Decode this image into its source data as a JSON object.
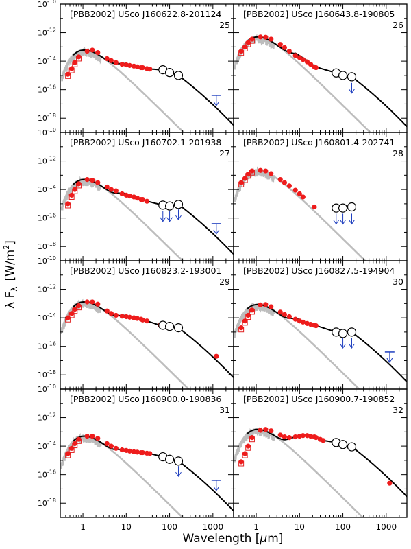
{
  "figure": {
    "ylabel_main": "λ F",
    "ylabel_sub": "λ",
    "ylabel_units_pre": "[W/m",
    "ylabel_units_sup": "2",
    "ylabel_units_post": "]",
    "xlabel_pre": "Wavelength  [",
    "xlabel_mu": "μ",
    "xlabel_post": "m]"
  },
  "chart_data": [
    {
      "type": "scatter",
      "catalog": "[PBB2002]",
      "title": "USco J160622.8-201124",
      "number": "25",
      "xscale": "log",
      "yscale": "log",
      "xlim": [
        0.3,
        3000
      ],
      "ylim": [
        1e-19,
        1e-10
      ],
      "photometry": [
        [
          0.45,
          1.2e-15
        ],
        [
          0.55,
          3e-15
        ],
        [
          0.65,
          8e-15
        ],
        [
          0.8,
          2e-14
        ],
        [
          1.25,
          5e-14
        ],
        [
          1.65,
          6e-14
        ],
        [
          2.2,
          4e-14
        ],
        [
          3.6,
          1.5e-14
        ],
        [
          4.5,
          1.1e-14
        ],
        [
          5.8,
          8e-15
        ],
        [
          8,
          6e-15
        ],
        [
          10,
          5.5e-15
        ],
        [
          12,
          5e-15
        ],
        [
          15,
          4.5e-15
        ],
        [
          18,
          4e-15
        ],
        [
          22,
          3.5e-15
        ],
        [
          24,
          3.5e-15
        ],
        [
          30,
          3e-15
        ],
        [
          35,
          2.8e-15
        ]
      ],
      "herschel": [
        [
          70,
          2.5e-15
        ],
        [
          100,
          1.6e-15
        ],
        [
          160,
          1e-15
        ]
      ],
      "upper_limits": [
        [
          1200,
          4e-17
        ]
      ],
      "model_kind": "disk"
    },
    {
      "type": "scatter",
      "catalog": "[PBB2002]",
      "title": "USco J160643.8-190805",
      "number": "26",
      "xscale": "log",
      "yscale": "log",
      "xlim": [
        0.3,
        3000
      ],
      "ylim": [
        1e-19,
        1e-10
      ],
      "photometry": [
        [
          0.45,
          5e-14
        ],
        [
          0.55,
          1e-13
        ],
        [
          0.65,
          2e-13
        ],
        [
          0.8,
          3.5e-13
        ],
        [
          1.25,
          5e-13
        ],
        [
          1.65,
          4.8e-13
        ],
        [
          2.2,
          3.5e-13
        ],
        [
          3.6,
          1.5e-13
        ],
        [
          4.5,
          9e-14
        ],
        [
          5.8,
          5e-14
        ],
        [
          8,
          2.5e-14
        ],
        [
          10,
          1.8e-14
        ],
        [
          12,
          1.3e-14
        ],
        [
          15,
          9e-15
        ],
        [
          18,
          6e-15
        ],
        [
          22,
          4e-15
        ],
        [
          24,
          3.5e-15
        ]
      ],
      "herschel": [
        [
          70,
          1.5e-15
        ],
        [
          100,
          1e-15
        ],
        [
          160,
          8e-16
        ]
      ],
      "upper_limits": [
        [
          160,
          3e-16
        ]
      ],
      "model_kind": "weak-disk"
    },
    {
      "type": "scatter",
      "catalog": "[PBB2002]",
      "title": "USco J160702.1-201938",
      "number": "27",
      "xscale": "log",
      "yscale": "log",
      "xlim": [
        0.3,
        3000
      ],
      "ylim": [
        1e-19,
        1e-10
      ],
      "photometry": [
        [
          0.45,
          1e-15
        ],
        [
          0.55,
          4e-15
        ],
        [
          0.65,
          1e-14
        ],
        [
          0.8,
          2.5e-14
        ],
        [
          1.25,
          5e-14
        ],
        [
          1.65,
          4.5e-14
        ],
        [
          2.2,
          3e-14
        ],
        [
          3.6,
          1.5e-14
        ],
        [
          4.5,
          1e-14
        ],
        [
          5.8,
          8e-15
        ],
        [
          8,
          5e-15
        ],
        [
          10,
          4e-15
        ],
        [
          12,
          3.5e-15
        ],
        [
          15,
          3e-15
        ],
        [
          18,
          2.5e-15
        ],
        [
          22,
          2e-15
        ],
        [
          24,
          2e-15
        ],
        [
          30,
          1.5e-15
        ]
      ],
      "herschel": [
        [
          70,
          8e-16
        ],
        [
          100,
          7e-16
        ],
        [
          160,
          9e-16
        ]
      ],
      "upper_limits": [
        [
          70,
          3e-16
        ],
        [
          100,
          3e-16
        ],
        [
          160,
          4e-16
        ],
        [
          1200,
          4e-17
        ]
      ],
      "model_kind": "disk"
    },
    {
      "type": "scatter",
      "catalog": "[PBB2002]",
      "title": "USco J160801.4-202741",
      "number": "28",
      "xscale": "log",
      "yscale": "log",
      "xlim": [
        0.3,
        3000
      ],
      "ylim": [
        1e-19,
        1e-10
      ],
      "photometry": [
        [
          0.45,
          3e-14
        ],
        [
          0.55,
          6e-14
        ],
        [
          0.65,
          1.2e-13
        ],
        [
          0.8,
          2e-13
        ],
        [
          1.25,
          2.2e-13
        ],
        [
          1.65,
          2e-13
        ],
        [
          2.2,
          1.3e-13
        ],
        [
          3.6,
          5e-14
        ],
        [
          4.5,
          3e-14
        ],
        [
          5.8,
          1.8e-14
        ],
        [
          8,
          9e-15
        ],
        [
          10,
          5e-15
        ],
        [
          12,
          3e-15
        ],
        [
          22,
          6e-16
        ]
      ],
      "herschel": [
        [
          70,
          5e-16
        ],
        [
          100,
          5e-16
        ],
        [
          160,
          6e-16
        ]
      ],
      "upper_limits": [
        [
          70,
          2e-16
        ],
        [
          100,
          2e-16
        ],
        [
          160,
          2e-16
        ]
      ],
      "model_kind": "none"
    },
    {
      "type": "scatter",
      "catalog": "[PBB2002]",
      "title": "USco J160823.2-193001",
      "number": "29",
      "xscale": "log",
      "yscale": "log",
      "xlim": [
        0.3,
        3000
      ],
      "ylim": [
        1e-19,
        1e-10
      ],
      "photometry": [
        [
          0.45,
          1e-14
        ],
        [
          0.55,
          2e-14
        ],
        [
          0.65,
          4e-14
        ],
        [
          0.8,
          7e-14
        ],
        [
          1.25,
          1.3e-13
        ],
        [
          1.65,
          1.3e-13
        ],
        [
          2.2,
          9e-14
        ],
        [
          3.6,
          3e-14
        ],
        [
          4.5,
          2e-14
        ],
        [
          5.8,
          1.5e-14
        ],
        [
          8,
          1.3e-14
        ],
        [
          10,
          1.2e-14
        ],
        [
          12,
          1.1e-14
        ],
        [
          15,
          1e-14
        ],
        [
          18,
          9e-15
        ],
        [
          22,
          8e-15
        ],
        [
          24,
          7e-15
        ],
        [
          30,
          6e-15
        ],
        [
          60,
          3e-15
        ]
      ],
      "herschel": [
        [
          70,
          3e-15
        ],
        [
          100,
          2.5e-15
        ],
        [
          160,
          2e-15
        ]
      ],
      "upper_limits": [],
      "extra_points": [
        [
          1200,
          2e-17
        ]
      ],
      "model_kind": "disk-strong"
    },
    {
      "type": "scatter",
      "catalog": "[PBB2002]",
      "title": "USco J160827.5-194904",
      "number": "30",
      "xscale": "log",
      "yscale": "log",
      "xlim": [
        0.3,
        3000
      ],
      "ylim": [
        1e-19,
        1e-10
      ],
      "photometry": [
        [
          0.45,
          2e-15
        ],
        [
          0.55,
          6e-15
        ],
        [
          0.65,
          1.5e-14
        ],
        [
          0.8,
          3.5e-14
        ],
        [
          1.25,
          8e-14
        ],
        [
          1.65,
          8.5e-14
        ],
        [
          2.2,
          6e-14
        ],
        [
          3.6,
          2.5e-14
        ],
        [
          4.5,
          1.7e-14
        ],
        [
          5.8,
          1.2e-14
        ],
        [
          8,
          8e-15
        ],
        [
          10,
          6e-15
        ],
        [
          12,
          5e-15
        ],
        [
          15,
          4e-15
        ],
        [
          18,
          3.5e-15
        ],
        [
          22,
          3e-15
        ],
        [
          24,
          2.8e-15
        ]
      ],
      "herschel": [
        [
          70,
          1e-15
        ],
        [
          100,
          8e-16
        ],
        [
          160,
          1e-15
        ]
      ],
      "upper_limits": [
        [
          100,
          4e-16
        ],
        [
          160,
          4e-16
        ],
        [
          1200,
          4e-17
        ]
      ],
      "model_kind": "disk"
    },
    {
      "type": "scatter",
      "catalog": "[PBB2002]",
      "title": "USco J160900.0-190836",
      "number": "31",
      "xscale": "log",
      "yscale": "log",
      "xlim": [
        0.3,
        3000
      ],
      "ylim": [
        1e-19,
        1e-10
      ],
      "photometry": [
        [
          0.45,
          3e-15
        ],
        [
          0.55,
          7e-15
        ],
        [
          0.65,
          1.5e-14
        ],
        [
          0.8,
          3e-14
        ],
        [
          1.25,
          5e-14
        ],
        [
          1.65,
          5e-14
        ],
        [
          2.2,
          3.5e-14
        ],
        [
          3.6,
          1.5e-14
        ],
        [
          4.5,
          1e-14
        ],
        [
          5.8,
          7e-15
        ],
        [
          8,
          5.5e-15
        ],
        [
          10,
          5e-15
        ],
        [
          12,
          4.5e-15
        ],
        [
          15,
          4e-15
        ],
        [
          18,
          3.8e-15
        ],
        [
          22,
          3.5e-15
        ],
        [
          24,
          3.5e-15
        ],
        [
          30,
          3.2e-15
        ],
        [
          35,
          3e-15
        ]
      ],
      "herschel": [
        [
          70,
          1.8e-15
        ],
        [
          100,
          1.2e-15
        ],
        [
          160,
          9e-16
        ]
      ],
      "upper_limits": [
        [
          160,
          4e-16
        ],
        [
          1200,
          4e-17
        ]
      ],
      "model_kind": "disk"
    },
    {
      "type": "scatter",
      "catalog": "[PBB2002]",
      "title": "USco J160900.7-190852",
      "number": "32",
      "xscale": "log",
      "yscale": "log",
      "xlim": [
        0.3,
        3000
      ],
      "ylim": [
        1e-19,
        1e-10
      ],
      "photometry": [
        [
          0.45,
          8e-16
        ],
        [
          0.55,
          3e-15
        ],
        [
          0.65,
          1e-14
        ],
        [
          0.8,
          4e-14
        ],
        [
          1.25,
          1.3e-13
        ],
        [
          1.65,
          1.5e-13
        ],
        [
          2.2,
          1.2e-13
        ],
        [
          3.6,
          6e-14
        ],
        [
          4.5,
          4.5e-14
        ],
        [
          5.8,
          4e-14
        ],
        [
          8,
          4.5e-14
        ],
        [
          10,
          5e-14
        ],
        [
          12,
          5.5e-14
        ],
        [
          15,
          5.5e-14
        ],
        [
          18,
          5e-14
        ],
        [
          22,
          4.5e-14
        ],
        [
          24,
          4e-14
        ],
        [
          30,
          3e-14
        ],
        [
          35,
          2.5e-14
        ]
      ],
      "herschel": [
        [
          70,
          1.8e-14
        ],
        [
          100,
          1.3e-14
        ],
        [
          160,
          9e-15
        ]
      ],
      "upper_limits": [],
      "extra_points": [
        [
          1200,
          2.5e-17
        ]
      ],
      "model_kind": "disk-transitional"
    }
  ]
}
